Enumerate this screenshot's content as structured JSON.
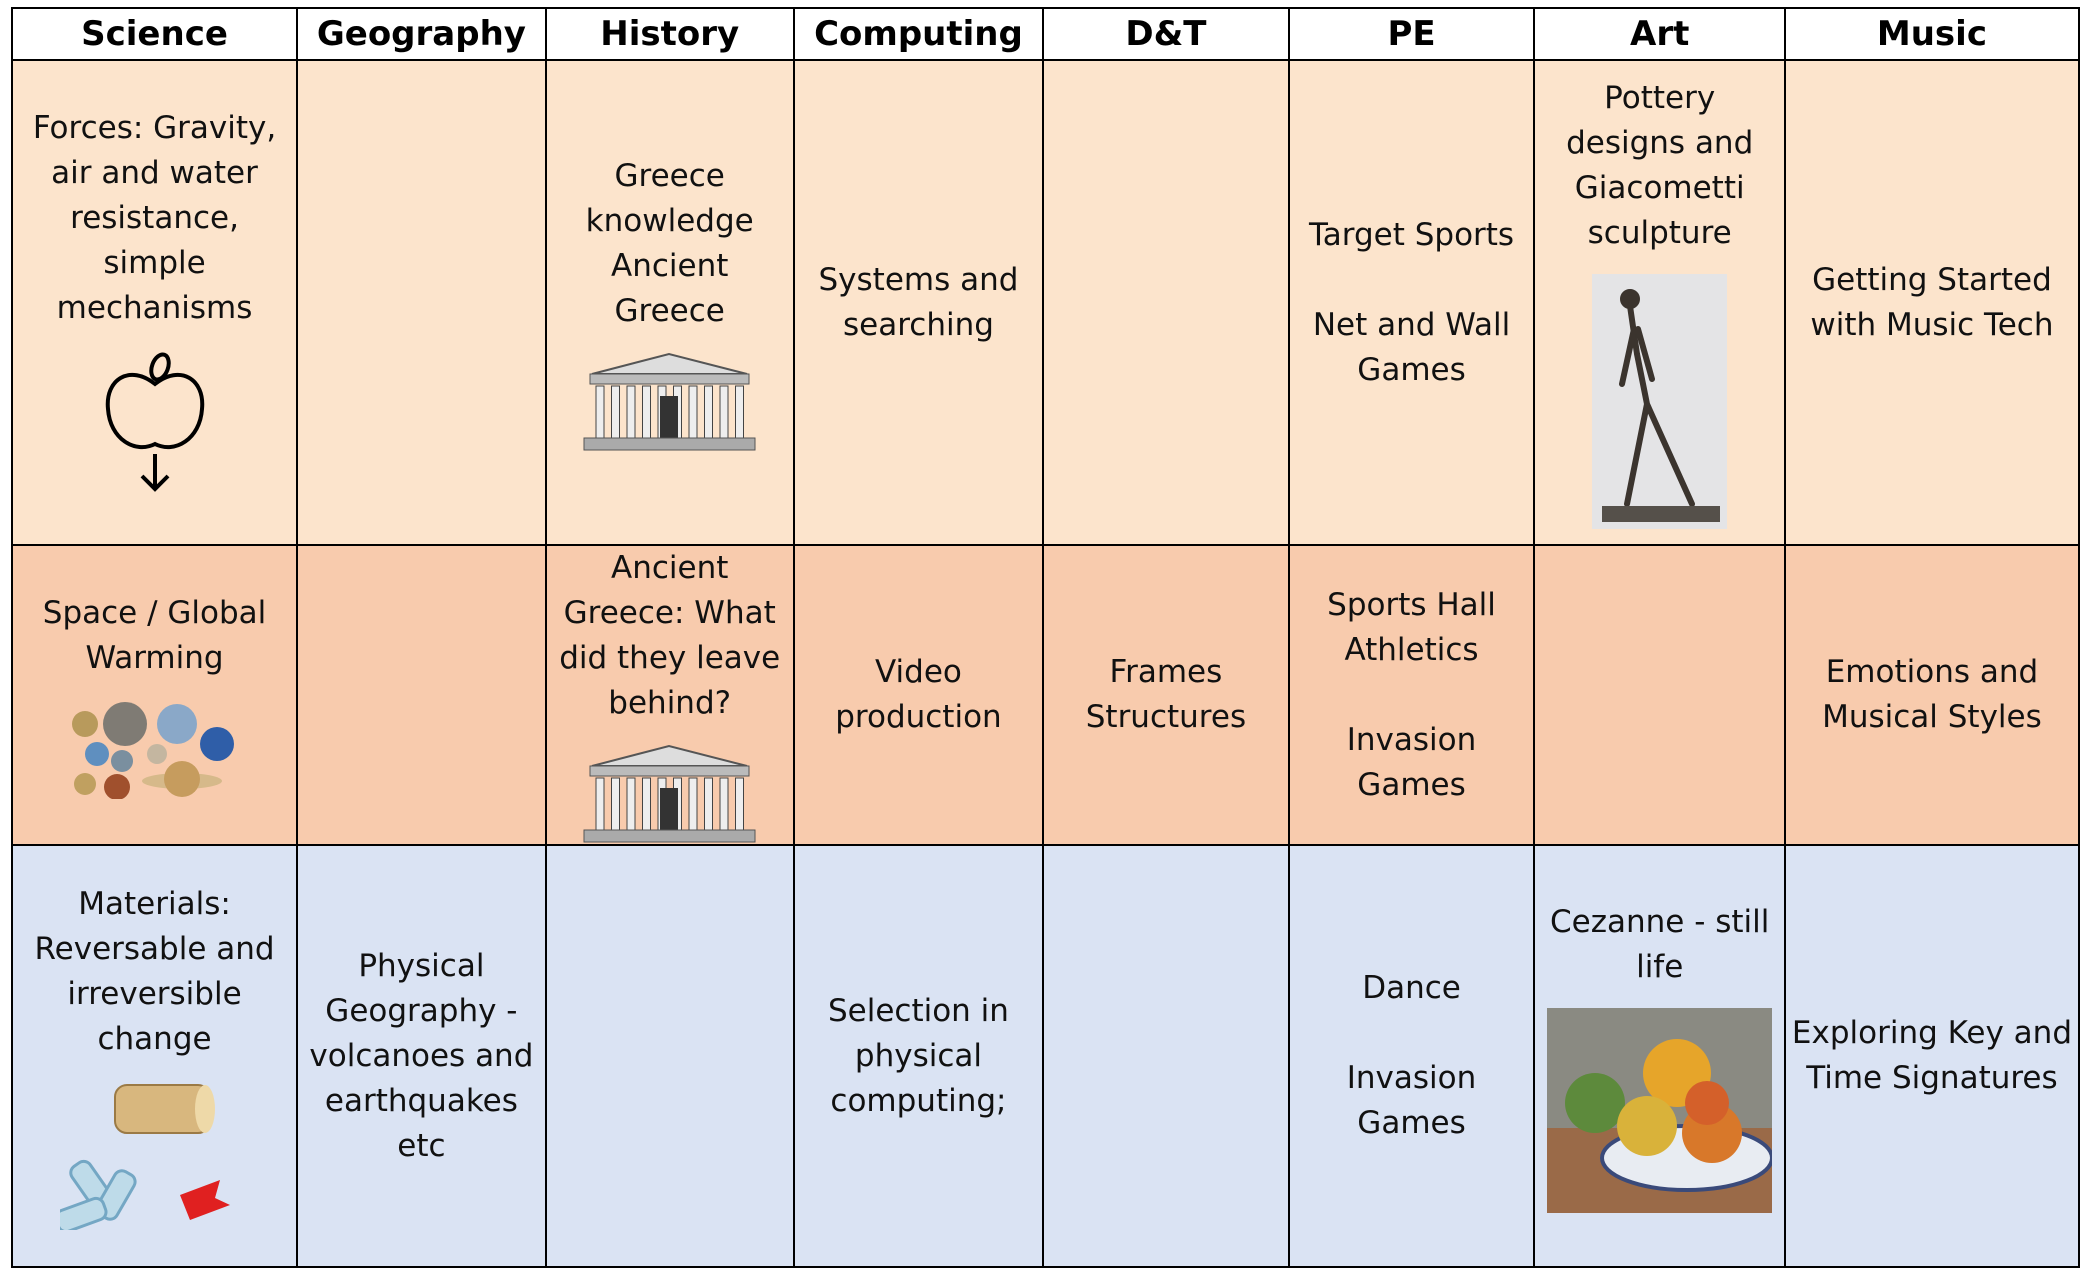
{
  "table": {
    "headers": [
      "Science",
      "Geography",
      "History",
      "Computing",
      "D&T",
      "PE",
      "Art",
      "Music"
    ],
    "rows": [
      [
        [
          "Forces: Gravity, air and water resistance, simple mechanisms"
        ],
        null,
        [
          "Greece knowledge Ancient Greece"
        ],
        [
          "Systems and searching"
        ],
        null,
        [
          "Target Sports",
          "Net and Wall Games"
        ],
        [
          "Pottery designs and Giacometti sculpture"
        ],
        [
          "Getting Started with Music Tech"
        ]
      ],
      [
        [
          "Space / Global Warming"
        ],
        null,
        [
          "Ancient Greece:  What did they leave behind?"
        ],
        [
          "Video production"
        ],
        [
          "Frames Structures"
        ],
        [
          "Sports Hall Athletics",
          "Invasion Games"
        ],
        null,
        [
          "Emotions and Musical Styles"
        ]
      ],
      [
        [
          "Materials: Reversable and irreversible change"
        ],
        [
          "Physical Geography - volcanoes and earthquakes etc"
        ],
        null,
        [
          "Selection in physical computing;"
        ],
        null,
        [
          "Dance",
          "Invasion Games"
        ],
        [
          "Cezanne - still life"
        ],
        [
          "Exploring Key and Time Signatures"
        ]
      ]
    ]
  }
}
